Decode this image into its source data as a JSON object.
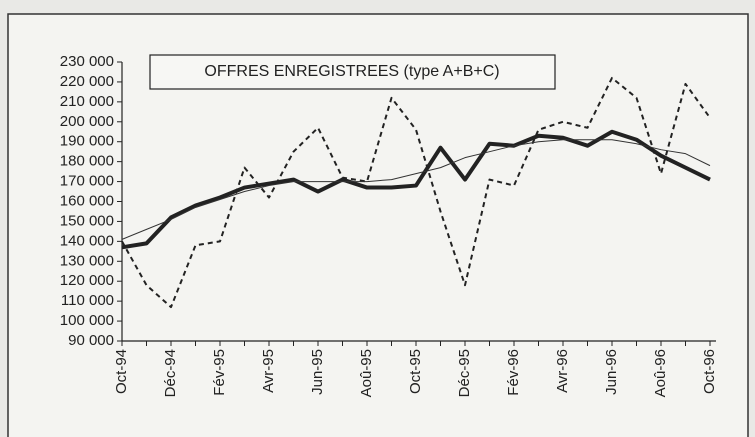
{
  "chart_data": {
    "type": "line",
    "title": "OFFRES ENREGISTREES (type A+B+C)",
    "categories": [
      "Oct-94",
      null,
      "Déc-94",
      null,
      "Fév-95",
      null,
      "Avr-95",
      null,
      "Jun-95",
      null,
      "Aoû-95",
      null,
      "Oct-95",
      null,
      "Déc-95",
      null,
      "Fév-96",
      null,
      "Avr-96",
      null,
      "Jun-96",
      null,
      "Aoû-96",
      null,
      "Oct-96"
    ],
    "series": [
      {
        "color": "#222222",
        "style": "dashed",
        "width": 2,
        "values": [
          140000,
          118000,
          107000,
          138000,
          140000,
          177000,
          162000,
          185000,
          197000,
          172000,
          170000,
          212000,
          196000,
          155000,
          118000,
          171000,
          168000,
          196000,
          200000,
          197000,
          222000,
          212000,
          174000,
          219000,
          202000
        ]
      },
      {
        "color": "#222222",
        "style": "solid",
        "width": 4,
        "values": [
          137000,
          139000,
          152000,
          158000,
          162000,
          167000,
          169000,
          171000,
          165000,
          171000,
          167000,
          167000,
          168000,
          187000,
          171000,
          189000,
          188000,
          193000,
          192000,
          188000,
          195000,
          191000,
          183000,
          177000,
          171000
        ]
      },
      {
        "color": "#333333",
        "style": "solid",
        "width": 1,
        "values": [
          141000,
          146000,
          151000,
          157000,
          161000,
          165000,
          168000,
          170000,
          170000,
          170000,
          170000,
          171000,
          174000,
          177000,
          182000,
          185000,
          188000,
          190000,
          191000,
          191000,
          191000,
          189000,
          186000,
          184000,
          178000
        ]
      }
    ],
    "ylim": [
      90000,
      230000
    ],
    "yticks": [
      {
        "value": 90000,
        "label": "90 000"
      },
      {
        "value": 100000,
        "label": "100 000"
      },
      {
        "value": 110000,
        "label": "110 000"
      },
      {
        "value": 120000,
        "label": "120 000"
      },
      {
        "value": 130000,
        "label": "130 000"
      },
      {
        "value": 140000,
        "label": "140 000"
      },
      {
        "value": 150000,
        "label": "150 000"
      },
      {
        "value": 160000,
        "label": "160 000"
      },
      {
        "value": 170000,
        "label": "170 000"
      },
      {
        "value": 180000,
        "label": "180 000"
      },
      {
        "value": 190000,
        "label": "190 000"
      },
      {
        "value": 200000,
        "label": "200 000"
      },
      {
        "value": 210000,
        "label": "210 000"
      },
      {
        "value": 220000,
        "label": "220 000"
      },
      {
        "value": 230000,
        "label": "230 000"
      }
    ],
    "grid": false
  }
}
